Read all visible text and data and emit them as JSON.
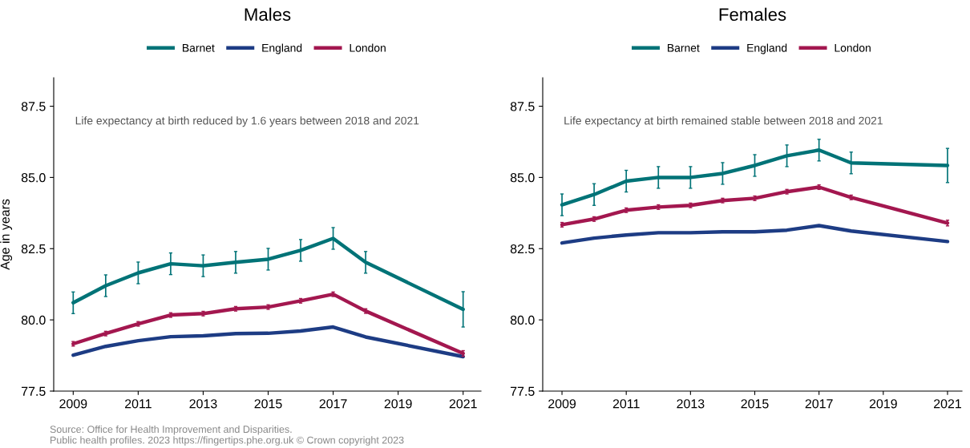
{
  "chart_data": [
    {
      "type": "line",
      "title": "Males",
      "ylabel": "Age in years",
      "legend": "top",
      "xlim": [
        2008.4,
        2021.55
      ],
      "xticks": [
        2009,
        2011,
        2013,
        2015,
        2017,
        2019,
        2021
      ],
      "ylim": [
        77.5,
        88.5
      ],
      "yticks": [
        {
          "value": 77.5,
          "label": "77.5"
        },
        {
          "value": 80,
          "label": "80.0"
        },
        {
          "value": 82.5,
          "label": "82.5"
        },
        {
          "value": 85,
          "label": "85.0"
        },
        {
          "value": 87.5,
          "label": "87.5"
        }
      ],
      "grid": false,
      "marker": "none",
      "line_style": "solid",
      "x": [
        2009,
        2010,
        2011,
        2012,
        2013,
        2014,
        2015,
        2016,
        2017,
        2018,
        2021
      ],
      "annotations": [
        "Life expectancy at birth reduced by 1.6 years between 2018 and 2021",
        "Source: Office for Health Improvement and Disparities.\nPublic health profiles. 2023 https://fingertips.phe.org.uk © Crown copyright 2023"
      ],
      "series": [
        {
          "name": "Barnet",
          "color": "#007377",
          "values": [
            80.6,
            81.2,
            81.65,
            81.97,
            81.9,
            82.02,
            82.13,
            82.44,
            82.86,
            82.02,
            80.37
          ],
          "errors": [
            0.38,
            0.38,
            0.38,
            0.38,
            0.38,
            0.38,
            0.38,
            0.38,
            0.38,
            0.38,
            0.62
          ]
        },
        {
          "name": "England",
          "color": "#1d3c84",
          "values": [
            78.76,
            79.07,
            79.27,
            79.41,
            79.44,
            79.52,
            79.53,
            79.61,
            79.75,
            79.4,
            78.71
          ]
        },
        {
          "name": "London",
          "color": "#a3174f",
          "values": [
            79.16,
            79.52,
            79.86,
            80.17,
            80.22,
            80.39,
            80.45,
            80.67,
            80.9,
            80.31,
            78.82
          ],
          "errors": [
            0.08,
            0.08,
            0.08,
            0.08,
            0.08,
            0.08,
            0.08,
            0.08,
            0.08,
            0.08,
            0.1
          ]
        }
      ]
    },
    {
      "type": "line",
      "title": "Females",
      "legend": "top",
      "xlim": [
        2008.4,
        2021.45
      ],
      "xticks": [
        2009,
        2011,
        2013,
        2015,
        2017,
        2019,
        2021
      ],
      "ylim": [
        77.5,
        88.5
      ],
      "yticks": [
        {
          "value": 77.5,
          "label": "77.5"
        },
        {
          "value": 80,
          "label": "80.0"
        },
        {
          "value": 82.5,
          "label": "82.5"
        },
        {
          "value": 85,
          "label": "85.0"
        },
        {
          "value": 87.5,
          "label": "87.5"
        }
      ],
      "grid": false,
      "marker": "none",
      "line_style": "solid",
      "x": [
        2009,
        2010,
        2011,
        2012,
        2013,
        2014,
        2015,
        2016,
        2017,
        2018,
        2021
      ],
      "annotations": [
        "Life expectancy at birth remained stable between 2018 and 2021"
      ],
      "series": [
        {
          "name": "Barnet",
          "color": "#007377",
          "values": [
            84.04,
            84.4,
            84.87,
            85.0,
            85.0,
            85.14,
            85.42,
            85.76,
            85.96,
            85.51,
            85.42
          ],
          "errors": [
            0.38,
            0.38,
            0.38,
            0.38,
            0.38,
            0.38,
            0.38,
            0.38,
            0.38,
            0.38,
            0.6
          ]
        },
        {
          "name": "England",
          "color": "#1d3c84",
          "values": [
            82.7,
            82.87,
            82.98,
            83.06,
            83.06,
            83.09,
            83.09,
            83.15,
            83.31,
            83.12,
            82.75
          ]
        },
        {
          "name": "London",
          "color": "#a3174f",
          "values": [
            83.34,
            83.54,
            83.85,
            83.96,
            84.02,
            84.19,
            84.27,
            84.5,
            84.66,
            84.3,
            83.4
          ],
          "errors": [
            0.08,
            0.08,
            0.08,
            0.08,
            0.08,
            0.08,
            0.08,
            0.08,
            0.08,
            0.08,
            0.1
          ]
        }
      ]
    }
  ]
}
